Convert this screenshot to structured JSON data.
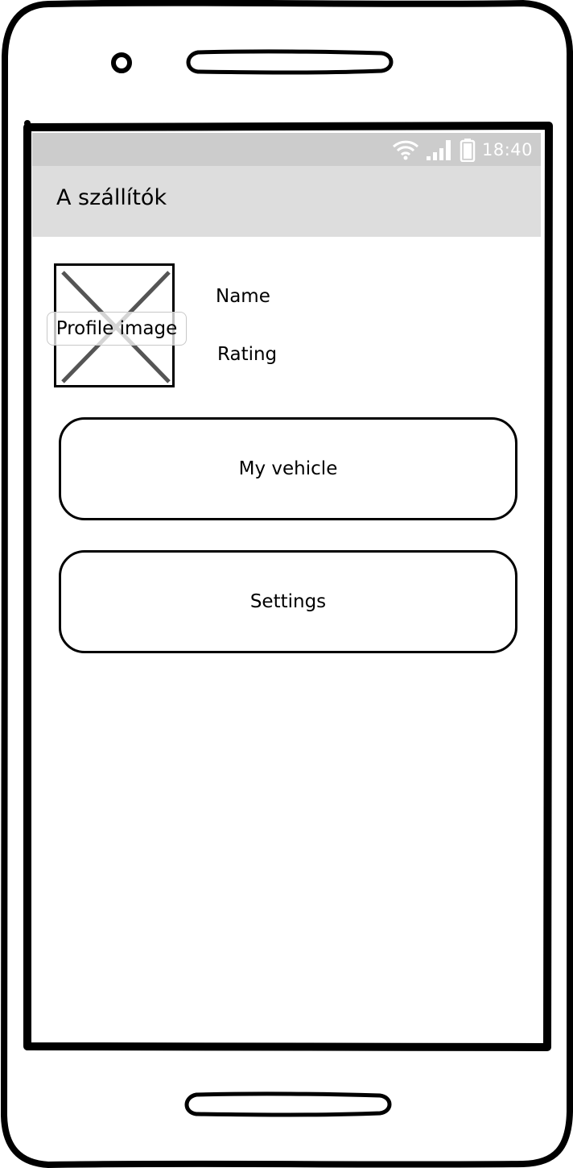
{
  "status_bar": {
    "time": "18:40",
    "icons": [
      "wifi-icon",
      "signal-icon",
      "battery-icon"
    ]
  },
  "app_bar": {
    "title": "A szállítók"
  },
  "profile": {
    "image_label": "Profile image",
    "name_label": "Name",
    "rating_label": "Rating"
  },
  "menu": {
    "vehicle_label": "My vehicle",
    "settings_label": "Settings"
  },
  "colors": {
    "status_bar": "#cccccc",
    "app_bar": "#dddddd",
    "frame": "#000000",
    "background": "#ffffff"
  }
}
